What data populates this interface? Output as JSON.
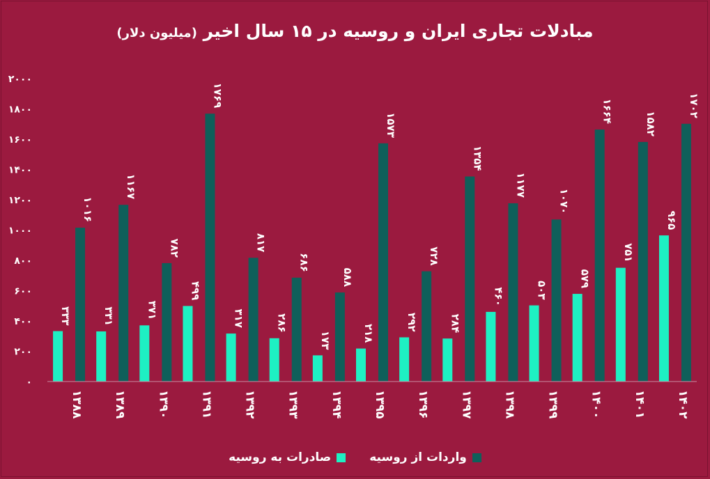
{
  "colors": {
    "background": "#9b1a3f",
    "exports": "#1ef0c3",
    "imports": "#0f5f5a",
    "text": "#ffffff"
  },
  "chart_data": {
    "type": "bar",
    "title": "مبادلات تجاری ایران و روسیه در ۱۵ سال اخیر",
    "subtitle": "(میلیون دلار)",
    "categories": [
      "۱۳۸۸",
      "۱۳۸۹",
      "۱۳۹۰",
      "۱۳۹۱",
      "۱۳۹۲",
      "۱۳۹۳",
      "۱۳۹۴",
      "۱۳۹۵",
      "۱۳۹۶",
      "۱۳۹۷",
      "۱۳۹۸",
      "۱۳۹۹",
      "۱۴۰۰",
      "۱۴۰۱",
      "۱۴۰۲"
    ],
    "series": [
      {
        "name": "صادرات به روسیه",
        "values": [
          333,
          331,
          371,
          499,
          317,
          286,
          173,
          218,
          292,
          284,
          460,
          503,
          579,
          751,
          965
        ],
        "labels": [
          "۳۳۳",
          "۳۳۱",
          "۳۷۱",
          "۴۹۹",
          "۳۱۷",
          "۲۸۶",
          "۱۷۳",
          "۲۱۸",
          "۲۹۲",
          "۲۸۴",
          "۴۶۰",
          "۵۰۳",
          "۵۷۹",
          "۷۵۱",
          "۹۶۵"
        ]
      },
      {
        "name": "واردات از روسیه",
        "values": [
          1016,
          1167,
          782,
          1769,
          817,
          686,
          588,
          1573,
          728,
          1354,
          1177,
          1070,
          1664,
          1582,
          1702
        ],
        "labels": [
          "۱۰۱۶",
          "۱۱۶۷",
          "۷۸۲",
          "۱۷۶۹",
          "۸۱۷",
          "۶۸۶",
          "۵۸۸",
          "۱۵۷۳",
          "۷۲۸",
          "۱۳۵۴",
          "۱۱۷۷",
          "۱۰۷۰",
          "۱۶۶۴",
          "۱۵۸۲",
          "۱۷۰۲"
        ]
      }
    ],
    "ylim": [
      0,
      2000
    ],
    "yticks": [
      0,
      200,
      400,
      600,
      800,
      1000,
      1200,
      1400,
      1600,
      1800,
      2000
    ],
    "ytick_labels": [
      "۰",
      "۲۰۰",
      "۴۰۰",
      "۶۰۰",
      "۸۰۰",
      "۱۰۰۰",
      "۱۲۰۰",
      "۱۴۰۰",
      "۱۶۰۰",
      "۱۸۰۰",
      "۲۰۰۰"
    ],
    "grid": false,
    "legend_position": "bottom"
  }
}
